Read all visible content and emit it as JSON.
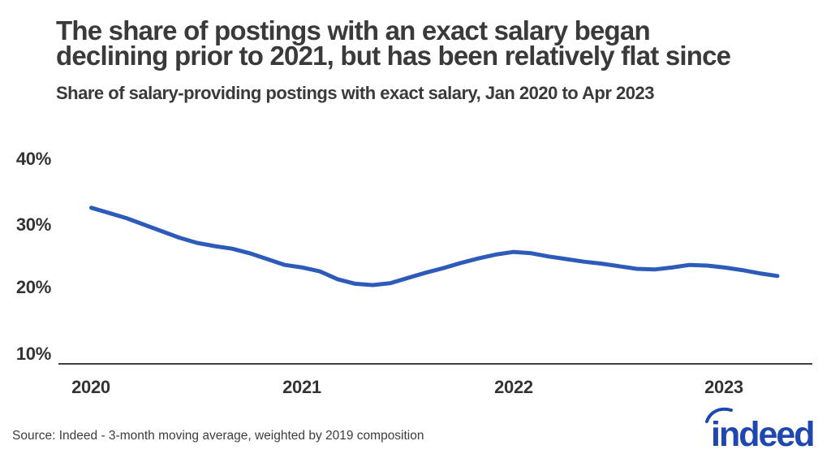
{
  "header": {
    "title_line1": "The share of postings with an exact salary began",
    "title_line2": "declining prior to 2021, but has been relatively flat since",
    "subtitle": "Share of salary-providing postings with exact salary, Jan 2020 to Apr 2023"
  },
  "chart_data": {
    "type": "line",
    "title": "The share of postings with an exact salary began declining prior to 2021, but has been relatively flat since",
    "subtitle": "Share of salary-providing postings with exact salary, Jan 2020 to Apr 2023",
    "series_name": "Share of salary-providing postings with exact salary",
    "unit": "percent",
    "x": [
      "Jan 2020",
      "Feb 2020",
      "Mar 2020",
      "Apr 2020",
      "May 2020",
      "Jun 2020",
      "Jul 2020",
      "Aug 2020",
      "Sep 2020",
      "Oct 2020",
      "Nov 2020",
      "Dec 2020",
      "Jan 2021",
      "Feb 2021",
      "Mar 2021",
      "Apr 2021",
      "May 2021",
      "Jun 2021",
      "Jul 2021",
      "Aug 2021",
      "Sep 2021",
      "Oct 2021",
      "Nov 2021",
      "Dec 2021",
      "Jan 2022",
      "Feb 2022",
      "Mar 2022",
      "Apr 2022",
      "May 2022",
      "Jun 2022",
      "Jul 2022",
      "Aug 2022",
      "Sep 2022",
      "Oct 2022",
      "Nov 2022",
      "Dec 2022",
      "Jan 2023",
      "Feb 2023",
      "Mar 2023",
      "Apr 2023"
    ],
    "values": [
      32.4,
      31.6,
      30.8,
      29.8,
      28.8,
      27.8,
      27.0,
      26.5,
      26.1,
      25.4,
      24.5,
      23.6,
      23.2,
      22.6,
      21.4,
      20.7,
      20.5,
      20.8,
      21.6,
      22.4,
      23.1,
      23.9,
      24.6,
      25.2,
      25.6,
      25.4,
      24.9,
      24.5,
      24.1,
      23.8,
      23.4,
      23.0,
      22.9,
      23.2,
      23.6,
      23.5,
      23.2,
      22.8,
      22.3,
      21.9
    ],
    "y_ticks": [
      "40%",
      "30%",
      "20%",
      "10%"
    ],
    "x_ticks": [
      "2020",
      "2021",
      "2022",
      "2023"
    ],
    "y_axis_range_pct": [
      10,
      40
    ],
    "grid": false,
    "legend": "none",
    "line_color": "#2d5bb9",
    "axis_color": "#3e3e3e"
  },
  "footer": {
    "source": "Source: Indeed - 3-month moving average, weighted by 2019 composition"
  },
  "branding": {
    "logo_text": "indeed",
    "logo_color": "#1f47b0"
  }
}
